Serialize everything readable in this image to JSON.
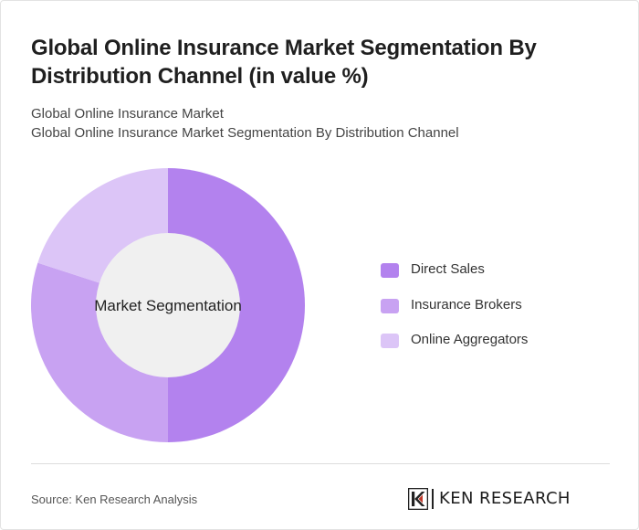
{
  "header": {
    "title": "Global Online Insurance Market Segmentation By Distribution Channel (in value %)",
    "subtitle_line1": "Global Online Insurance Market",
    "subtitle_line2": "Global Online Insurance Market Segmentation By Distribution Channel"
  },
  "chart_data": {
    "type": "pie",
    "variant": "donut",
    "title": "Global Online Insurance Market Segmentation By Distribution Channel (in value %)",
    "center_label": "Market Segmentation",
    "categories": [
      "Direct Sales",
      "Insurance Brokers",
      "Online Aggregators"
    ],
    "values": [
      50,
      30,
      20
    ],
    "colors": [
      "#b382ee",
      "#c8a2f2",
      "#dcc5f7"
    ],
    "legend_position": "right"
  },
  "legend": {
    "items": [
      {
        "label": "Direct Sales",
        "color": "#b382ee"
      },
      {
        "label": "Insurance Brokers",
        "color": "#c8a2f2"
      },
      {
        "label": "Online Aggregators",
        "color": "#dcc5f7"
      }
    ]
  },
  "footer": {
    "source": "Source: Ken Research Analysis",
    "logo_text": "KEN RESEARCH",
    "logo_icon": "ken-research-k-logo-icon"
  },
  "colors": {
    "center_fill": "#f0f0f0",
    "divider": "#dcdcdc"
  }
}
